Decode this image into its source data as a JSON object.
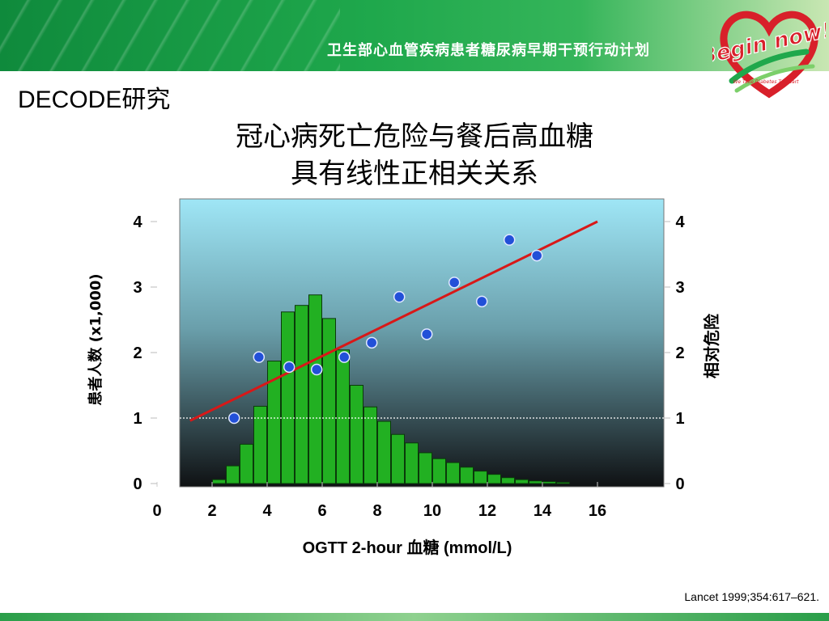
{
  "header": {
    "program_title": "卫生部心血管疾病患者糖尿病早期干预行动计划",
    "logo_text": "Begin now!",
    "logo_tagline": "We Take Diabetes To Heart",
    "colors": {
      "bar_start": "#0f8a3c",
      "bar_end": "#c9e7b3",
      "logo_red": "#d8202a"
    }
  },
  "section_title": "DECODE研究",
  "chart_data": {
    "type": "bar+scatter",
    "title_lines": [
      "冠心病死亡危险与餐后高血糖",
      "具有线性正相关关系"
    ],
    "xlabel": "OGTT 2-hour 血糖 (mmol/L)",
    "ylabel_left": "患者人数 (x1,000)",
    "ylabel_right": "相对危险",
    "xlim": [
      0,
      18.5
    ],
    "ylim_left": [
      0,
      4.3
    ],
    "ylim_right": [
      0,
      4.3
    ],
    "x_ticks": [
      0,
      2,
      4,
      6,
      8,
      10,
      12,
      14,
      16
    ],
    "y_ticks_left": [
      0,
      1,
      2,
      3,
      4
    ],
    "y_ticks_right": [
      0,
      1,
      2,
      3,
      4
    ],
    "reference_line_y": 1,
    "histogram": {
      "bin_width": 0.5,
      "bin_starts": [
        2.0,
        2.5,
        3.0,
        3.5,
        4.0,
        4.5,
        5.0,
        5.5,
        6.0,
        6.5,
        7.0,
        7.5,
        8.0,
        8.5,
        9.0,
        9.5,
        10.0,
        10.5,
        11.0,
        11.5,
        12.0,
        12.5,
        13.0,
        13.5,
        14.0,
        14.5
      ],
      "values": [
        0.06,
        0.27,
        0.6,
        1.18,
        1.87,
        2.62,
        2.72,
        2.88,
        2.52,
        2.04,
        1.5,
        1.17,
        0.95,
        0.75,
        0.62,
        0.47,
        0.38,
        0.32,
        0.25,
        0.19,
        0.14,
        0.09,
        0.06,
        0.04,
        0.03,
        0.02
      ],
      "color": "#22b022"
    },
    "relative_risk_points": {
      "x": [
        2.8,
        3.7,
        4.8,
        5.8,
        6.8,
        7.8,
        8.8,
        9.8,
        10.8,
        11.8,
        12.8,
        13.8
      ],
      "y": [
        1.0,
        1.93,
        1.78,
        1.74,
        1.93,
        2.15,
        2.85,
        2.28,
        3.07,
        2.78,
        3.72,
        3.48
      ],
      "color": "#2250d8"
    },
    "trend_line": {
      "x": [
        1.2,
        16.0
      ],
      "y": [
        0.96,
        4.0
      ],
      "color": "#d81818"
    },
    "plot_background": {
      "top": "#9fe6f6",
      "bottom": "#0f1113"
    }
  },
  "citation": "Lancet 1999;354:617–621."
}
